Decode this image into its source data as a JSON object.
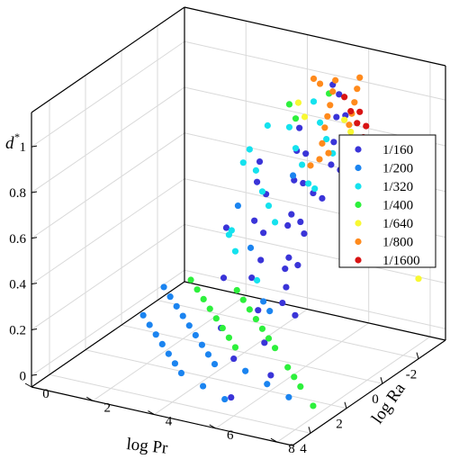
{
  "chart_data": {
    "type": "scatter",
    "zlabel": "d",
    "zlabel_sup": "*",
    "xlabel_log": "log",
    "xlabel_var": "Pr",
    "ylabel_log": "log",
    "ylabel_var": "Ra",
    "x_ticks": [
      "-2",
      "0",
      "2",
      "4"
    ],
    "y_ticks": [
      "0",
      "2",
      "4",
      "6",
      "8"
    ],
    "z_ticks": [
      "0",
      "0.2",
      "0.4",
      "0.6",
      "0.8",
      "1"
    ],
    "xlim": [
      -3.5,
      5.0
    ],
    "ylim": [
      0,
      8.5
    ],
    "zlim": [
      -0.05,
      1.15
    ],
    "grid": true,
    "legend_position": "right",
    "series": [
      {
        "name": "1/160",
        "color": "#3a34d8",
        "points": [
          [
            1.0,
            6.0,
            0.62
          ],
          [
            2.0,
            6.5,
            0.5
          ],
          [
            3.0,
            7.0,
            0.42
          ],
          [
            4.0,
            7.0,
            0.3
          ],
          [
            4.5,
            7.5,
            0.2
          ],
          [
            0.5,
            5.0,
            0.7
          ],
          [
            1.5,
            5.5,
            0.6
          ],
          [
            2.5,
            6.0,
            0.55
          ],
          [
            3.5,
            6.5,
            0.4
          ],
          [
            0.0,
            4.5,
            0.8
          ],
          [
            1.0,
            5.0,
            0.78
          ],
          [
            2.0,
            5.5,
            0.68
          ],
          [
            3.0,
            6.0,
            0.5
          ],
          [
            0.0,
            6.0,
            0.88
          ],
          [
            1.0,
            6.5,
            0.82
          ],
          [
            2.0,
            7.0,
            0.72
          ],
          [
            3.0,
            7.5,
            0.6
          ],
          [
            4.0,
            8.0,
            0.45
          ],
          [
            -0.5,
            5.5,
            0.95
          ],
          [
            0.5,
            6.0,
            0.92
          ],
          [
            1.5,
            6.5,
            0.86
          ],
          [
            2.5,
            7.0,
            0.78
          ],
          [
            3.5,
            7.5,
            0.66
          ],
          [
            -0.5,
            7.0,
            1.05
          ],
          [
            0.5,
            7.5,
            1.0
          ],
          [
            1.5,
            8.0,
            0.95
          ],
          [
            2.5,
            8.0,
            0.88
          ],
          [
            3.5,
            8.0,
            0.78
          ],
          [
            -1.0,
            6.5,
            1.1
          ],
          [
            0.0,
            7.0,
            1.07
          ],
          [
            1.0,
            7.5,
            1.03
          ],
          [
            2.0,
            8.0,
            1.0
          ],
          [
            3.0,
            8.0,
            0.93
          ],
          [
            -1.5,
            6.0,
            1.1
          ],
          [
            4.5,
            8.0,
            0.6
          ],
          [
            4.0,
            6.0,
            0.2
          ],
          [
            3.0,
            5.0,
            0.25
          ],
          [
            2.0,
            4.5,
            0.4
          ],
          [
            1.0,
            4.0,
            0.55
          ],
          [
            5.0,
            6.5,
            0.1
          ]
        ]
      },
      {
        "name": "1/200",
        "color": "#1b84f0",
        "points": [
          [
            -0.5,
            1.5,
            0.05
          ],
          [
            0.0,
            2.0,
            0.05
          ],
          [
            0.5,
            2.5,
            0.05
          ],
          [
            1.0,
            3.0,
            0.05
          ],
          [
            1.5,
            3.5,
            0.05
          ],
          [
            2.0,
            4.0,
            0.05
          ],
          [
            2.5,
            4.5,
            0.05
          ],
          [
            -1.0,
            1.0,
            0.05
          ],
          [
            -1.5,
            0.5,
            0.05
          ],
          [
            0.5,
            1.0,
            0.05
          ],
          [
            1.0,
            1.5,
            0.05
          ],
          [
            1.5,
            2.0,
            0.05
          ],
          [
            2.0,
            2.5,
            0.05
          ],
          [
            2.5,
            3.0,
            0.05
          ],
          [
            3.0,
            3.5,
            0.05
          ],
          [
            3.5,
            4.0,
            0.05
          ],
          [
            3.0,
            6.5,
            0.05
          ],
          [
            3.5,
            7.5,
            0.05
          ],
          [
            2.5,
            5.5,
            0.05
          ],
          [
            1.5,
            5.5,
            0.3
          ],
          [
            0.5,
            4.5,
            0.45
          ],
          [
            2.0,
            6.0,
            0.3
          ],
          [
            -0.5,
            3.5,
            0.55
          ],
          [
            -1.0,
            5.0,
            0.7
          ],
          [
            4.0,
            5.0,
            0.05
          ],
          [
            4.5,
            6.0,
            0.05
          ]
        ]
      },
      {
        "name": "1/320",
        "color": "#15e2ee",
        "points": [
          [
            -2.0,
            3.0,
            0.7
          ],
          [
            -1.5,
            3.5,
            0.65
          ],
          [
            -1.0,
            4.0,
            0.6
          ],
          [
            -0.5,
            4.5,
            0.58
          ],
          [
            0.0,
            5.0,
            0.55
          ],
          [
            -2.5,
            4.0,
            0.8
          ],
          [
            -2.0,
            4.5,
            0.75
          ],
          [
            -1.5,
            5.0,
            0.72
          ],
          [
            -1.0,
            5.5,
            0.68
          ],
          [
            -2.5,
            5.0,
            0.85
          ],
          [
            -2.0,
            5.5,
            0.82
          ],
          [
            -1.5,
            6.0,
            0.8
          ],
          [
            -0.5,
            6.0,
            0.7
          ],
          [
            0.0,
            3.5,
            0.45
          ],
          [
            0.5,
            4.0,
            0.42
          ],
          [
            -2.5,
            2.5,
            0.6
          ],
          [
            -3.0,
            3.0,
            0.75
          ],
          [
            -3.0,
            4.5,
            0.9
          ],
          [
            1.0,
            5.0,
            0.35
          ],
          [
            -1.0,
            3.0,
            0.4
          ]
        ]
      },
      {
        "name": "1/400",
        "color": "#2df03c",
        "points": [
          [
            -3.0,
            0.5,
            0.0
          ],
          [
            -2.5,
            1.0,
            0.0
          ],
          [
            -2.0,
            1.5,
            0.0
          ],
          [
            -1.5,
            2.0,
            0.0
          ],
          [
            -1.0,
            2.5,
            0.0
          ],
          [
            -0.5,
            3.0,
            0.0
          ],
          [
            0.0,
            3.5,
            0.0
          ],
          [
            0.5,
            4.0,
            0.0
          ],
          [
            -3.0,
            2.0,
            0.0
          ],
          [
            -2.5,
            2.5,
            0.0
          ],
          [
            -2.0,
            3.0,
            0.0
          ],
          [
            -1.5,
            3.5,
            0.0
          ],
          [
            -1.0,
            4.0,
            0.0
          ],
          [
            -0.5,
            4.5,
            0.0
          ],
          [
            0.0,
            5.0,
            0.0
          ],
          [
            1.0,
            6.0,
            0.0
          ],
          [
            1.5,
            6.5,
            0.0
          ],
          [
            2.0,
            7.0,
            0.0
          ],
          [
            3.0,
            8.0,
            0.0
          ],
          [
            -2.5,
            4.0,
            0.9
          ],
          [
            -2.0,
            4.5,
            0.88
          ],
          [
            -3.0,
            5.0,
            0.95
          ]
        ]
      },
      {
        "name": "1/640",
        "color": "#f8f832",
        "points": [
          [
            -3.0,
            5.5,
            0.85
          ],
          [
            -2.5,
            6.0,
            0.84
          ],
          [
            -2.0,
            6.5,
            0.82
          ],
          [
            -1.5,
            7.0,
            0.8
          ],
          [
            -1.0,
            7.5,
            0.78
          ],
          [
            -3.0,
            6.5,
            0.7
          ],
          [
            -2.5,
            7.0,
            0.65
          ],
          [
            -2.0,
            7.5,
            0.6
          ],
          [
            -3.0,
            7.5,
            0.5
          ],
          [
            -2.5,
            8.0,
            0.45
          ],
          [
            -3.0,
            8.0,
            0.35
          ],
          [
            -2.0,
            8.5,
            0.3
          ],
          [
            -1.5,
            8.0,
            0.55
          ],
          [
            -3.0,
            4.0,
            0.88
          ],
          [
            -2.5,
            4.5,
            0.86
          ]
        ]
      },
      {
        "name": "1/800",
        "color": "#ff8a1c",
        "points": [
          [
            -3.0,
            6.0,
            1.05
          ],
          [
            -2.0,
            6.5,
            1.07
          ],
          [
            -1.0,
            7.0,
            1.08
          ],
          [
            0.0,
            7.5,
            1.1
          ],
          [
            1.0,
            8.0,
            1.12
          ],
          [
            2.0,
            8.5,
            1.12
          ],
          [
            3.0,
            8.5,
            1.12
          ],
          [
            4.0,
            8.5,
            1.12
          ],
          [
            -2.5,
            5.5,
            1.05
          ],
          [
            -1.5,
            6.0,
            1.07
          ],
          [
            -0.5,
            6.5,
            1.08
          ],
          [
            0.5,
            7.0,
            1.1
          ],
          [
            1.5,
            7.5,
            1.12
          ],
          [
            2.5,
            8.0,
            1.12
          ],
          [
            3.5,
            8.5,
            1.12
          ],
          [
            -3.0,
            4.5,
            1.0
          ],
          [
            -2.5,
            5.0,
            1.02
          ]
        ]
      },
      {
        "name": "1/1600",
        "color": "#d81414",
        "points": [
          [
            -3.0,
            5.5,
            0.95
          ],
          [
            -2.5,
            6.0,
            0.93
          ],
          [
            -2.0,
            6.5,
            0.92
          ],
          [
            -1.5,
            7.0,
            0.9
          ],
          [
            -1.0,
            7.5,
            0.9
          ],
          [
            -0.5,
            8.0,
            0.88
          ],
          [
            -3.0,
            6.0,
            0.9
          ],
          [
            -2.5,
            6.5,
            0.88
          ],
          [
            -1.5,
            7.5,
            0.86
          ],
          [
            -0.5,
            8.5,
            0.85
          ]
        ]
      }
    ]
  }
}
